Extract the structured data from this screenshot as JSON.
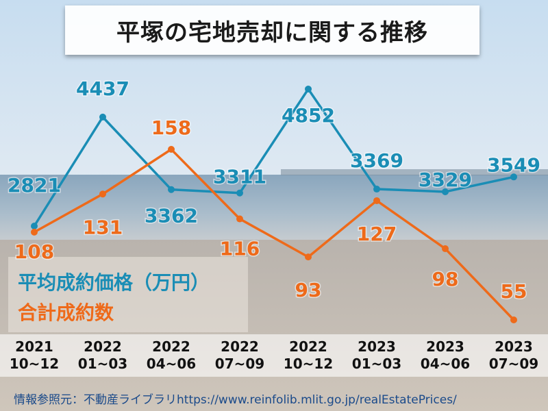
{
  "title": "平塚の宅地売却に関する推移",
  "source": "情報参照元：不動産ライブラリhttps://www.reinfolib.mlit.go.jp/realEstatePrices/",
  "colors": {
    "price": "#1a8db5",
    "count": "#ee6a1a"
  },
  "chart_data": {
    "type": "line",
    "title": "平塚の宅地売却に関する推移",
    "xlabel": "",
    "ylabel": "",
    "categories": [
      "2021\n10~12",
      "2022\n01~03",
      "2022\n04~06",
      "2022\n07~09",
      "2022\n10~12",
      "2023\n01~03",
      "2023\n04~06",
      "2023\n07~09"
    ],
    "series": [
      {
        "name": "平均成約価格（万円）",
        "values": [
          2821,
          4437,
          3362,
          3311,
          4852,
          3369,
          3329,
          3549
        ]
      },
      {
        "name": "合計成約数",
        "values": [
          108,
          131,
          158,
          116,
          93,
          127,
          98,
          55
        ]
      }
    ],
    "grid": false,
    "legend": "bottom-left"
  }
}
